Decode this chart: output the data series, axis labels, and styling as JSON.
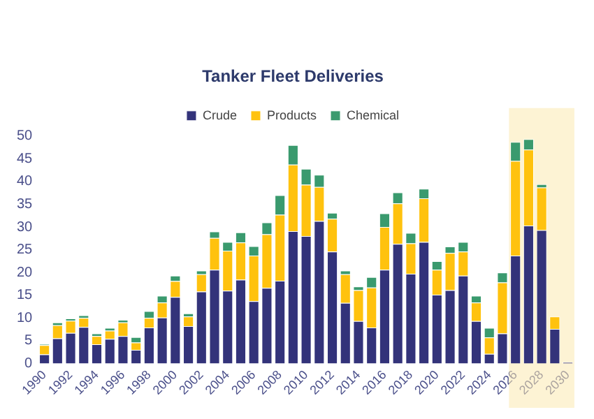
{
  "chart_data": {
    "type": "bar",
    "title": "Tanker Fleet Deliveries",
    "stacked": true,
    "legend": "top",
    "grid": false,
    "categories": [
      "1990",
      null,
      "1992",
      null,
      "1994",
      null,
      "1996",
      null,
      "1998",
      null,
      "2000",
      null,
      "2002",
      null,
      "2004",
      null,
      "2006",
      null,
      "2008",
      null,
      "2010",
      null,
      "2012",
      null,
      "2014",
      null,
      "2016",
      null,
      "2018",
      null,
      "2020",
      null,
      "2022",
      null,
      "2024",
      null,
      "2026",
      null,
      "2028",
      null,
      "2030"
    ],
    "series": [
      {
        "name": "Crude",
        "color": "#33337a",
        "values": [
          2,
          5.5,
          6.7,
          8,
          4.2,
          5.4,
          6,
          3,
          7.9,
          10.1,
          14.6,
          8.2,
          15.8,
          20.6,
          16,
          18.4,
          13.7,
          16.6,
          18.2,
          29.1,
          28,
          31.3,
          24.6,
          13.3,
          9.3,
          7.9,
          20.6,
          26.3,
          19.7,
          26.7,
          15.1,
          16.1,
          19.3,
          9.3,
          2.1,
          6.6,
          23.7,
          30.3,
          29.3,
          7.6,
          0.3
        ]
      },
      {
        "name": "Products",
        "color": "#ffc20e",
        "values": [
          2,
          2.9,
          2.7,
          2,
          1.8,
          1.8,
          3,
          1.6,
          2.1,
          3.3,
          3.5,
          2.1,
          3.8,
          7,
          8.8,
          8.2,
          10,
          11.8,
          14.5,
          14.6,
          11.3,
          7.5,
          7.2,
          6.3,
          6.8,
          8.8,
          9.4,
          8.9,
          6.7,
          9.6,
          5.5,
          8.2,
          5.3,
          4.1,
          3.6,
          11.2,
          20.8,
          16.7,
          9.4,
          2.7,
          0
        ]
      },
      {
        "name": "Chemical",
        "color": "#3a9a6e",
        "values": [
          0.3,
          0.6,
          0.5,
          0.6,
          0.6,
          0.6,
          0.6,
          1.2,
          1.5,
          1.5,
          1.2,
          0.7,
          0.8,
          1.4,
          1.9,
          2.2,
          2.1,
          2.6,
          4.3,
          4.3,
          3.5,
          2.7,
          1.3,
          0.8,
          0.8,
          2.3,
          3,
          2.4,
          2.3,
          2.1,
          1.9,
          1.4,
          2.1,
          1.5,
          2.1,
          2.2,
          4.2,
          2.3,
          0.7,
          0,
          0
        ]
      }
    ],
    "ylim": [
      0,
      50
    ],
    "yticks": [
      0,
      5,
      10,
      15,
      20,
      25,
      30,
      35,
      40,
      45,
      50
    ],
    "bands": [
      {
        "axis": "x",
        "from": "2026",
        "to": "2030",
        "color": "#fce9b0"
      }
    ]
  }
}
